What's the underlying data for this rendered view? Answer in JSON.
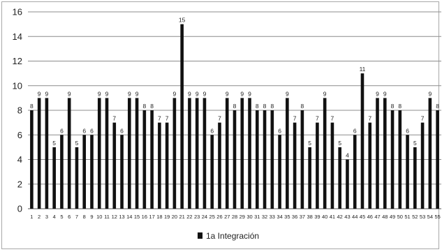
{
  "chart_data": {
    "type": "bar",
    "categories": [
      "1",
      "2",
      "3",
      "4",
      "5",
      "6",
      "7",
      "8",
      "9",
      "10",
      "11",
      "12",
      "13",
      "14",
      "15",
      "16",
      "17",
      "18",
      "19",
      "20",
      "21",
      "22",
      "23",
      "24",
      "25",
      "26",
      "27",
      "28",
      "29",
      "30",
      "31",
      "32",
      "33",
      "34",
      "35",
      "36",
      "37",
      "38",
      "39",
      "40",
      "41",
      "42",
      "43",
      "44",
      "45",
      "46",
      "47",
      "48",
      "49",
      "50",
      "51",
      "52",
      "53",
      "54",
      "55"
    ],
    "series": [
      {
        "name": "1a Integración",
        "values": [
          8,
          9,
          9,
          5,
          6,
          9,
          5,
          6,
          6,
          9,
          9,
          7,
          6,
          9,
          9,
          8,
          8,
          7,
          7,
          9,
          15,
          9,
          9,
          9,
          6,
          7,
          9,
          8,
          9,
          9,
          8,
          8,
          8,
          6,
          9,
          7,
          8,
          5,
          7,
          9,
          7,
          5,
          4,
          6,
          11,
          7,
          9,
          9,
          8,
          8,
          6,
          5,
          7,
          9,
          8
        ],
        "color": "#111111"
      }
    ],
    "y_ticks": [
      "0",
      "2",
      "4",
      "6",
      "8",
      "10",
      "12",
      "14",
      "16"
    ],
    "ylim": [
      0,
      16
    ],
    "grid": true,
    "legend_position": "bottom-center",
    "title": "",
    "xlabel": "",
    "ylabel": ""
  }
}
